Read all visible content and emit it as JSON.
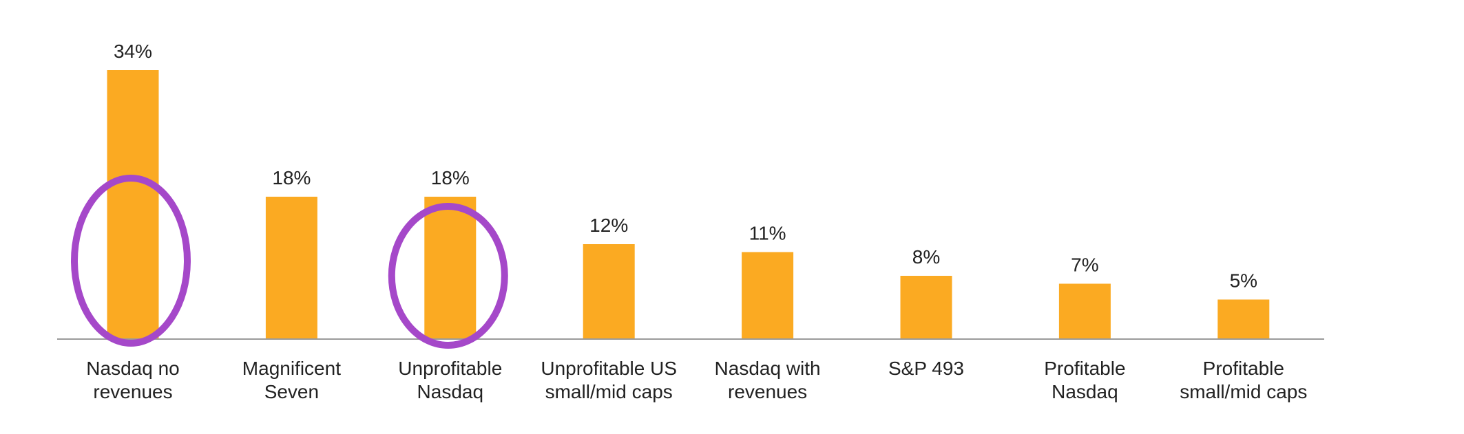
{
  "chart_data": {
    "type": "bar",
    "title": "",
    "xlabel": "",
    "ylabel": "",
    "ylim": [
      0,
      34
    ],
    "grid": false,
    "legend": "none",
    "value_format": "percent",
    "categories": [
      [
        "Nasdaq no",
        "revenues"
      ],
      [
        "Magnificent",
        "Seven"
      ],
      [
        "Unprofitable",
        "Nasdaq"
      ],
      [
        "Unprofitable US",
        "small/mid caps"
      ],
      [
        "Nasdaq with",
        "revenues"
      ],
      [
        "S&P 493"
      ],
      [
        "Profitable",
        "Nasdaq"
      ],
      [
        "Profitable",
        "small/mid caps"
      ]
    ],
    "values": [
      34,
      18,
      18,
      12,
      11,
      8,
      7,
      5
    ],
    "data_labels": [
      "34%",
      "18%",
      "18%",
      "12%",
      "11%",
      "8%",
      "7%",
      "5%"
    ],
    "highlighted_categories": [
      "Nasdaq no revenues",
      "Unprofitable Nasdaq"
    ],
    "colors": {
      "bar": "#FBAA22",
      "highlight_ring": "#A548C9",
      "axis": "#9A9A9A",
      "text": "#222222"
    }
  }
}
